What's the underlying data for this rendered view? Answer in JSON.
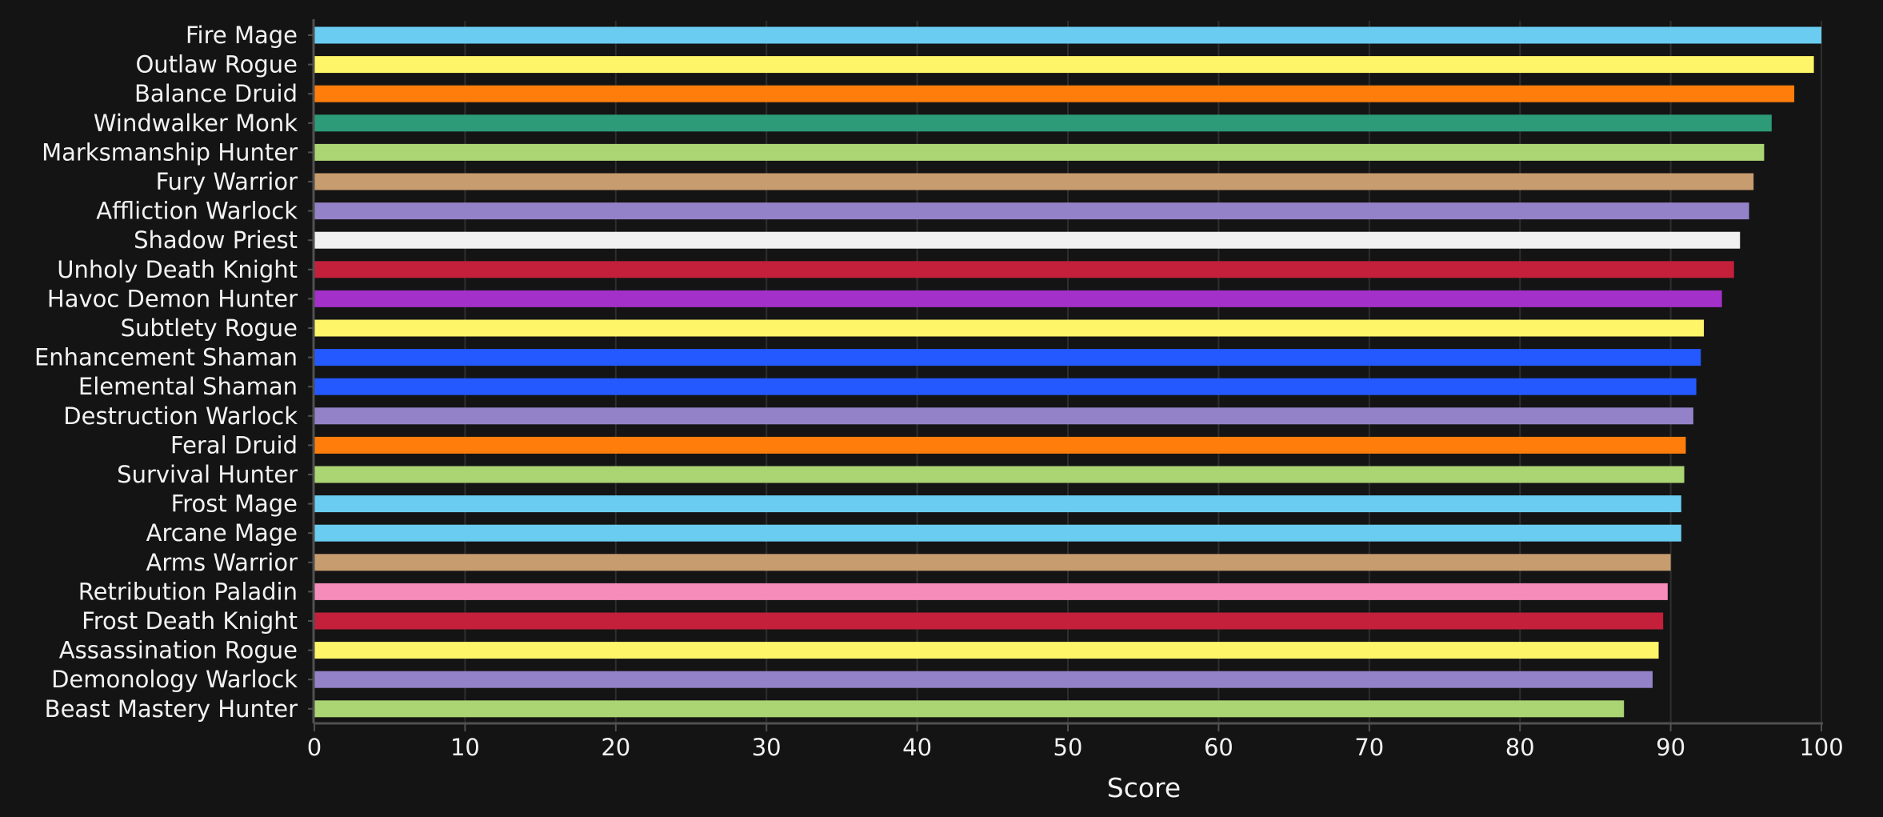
{
  "chart_data": {
    "type": "bar",
    "orientation": "horizontal",
    "title": "",
    "xlabel": "Score",
    "ylabel": "",
    "xlim": [
      0,
      100
    ],
    "xticks": [
      0,
      10,
      20,
      30,
      40,
      50,
      60,
      70,
      80,
      90,
      100
    ],
    "grid": true,
    "legend": "none",
    "background": "#141414",
    "categories": [
      "Fire Mage",
      "Outlaw Rogue",
      "Balance Druid",
      "Windwalker Monk",
      "Marksmanship Hunter",
      "Fury Warrior",
      "Affliction Warlock",
      "Shadow Priest",
      "Unholy Death Knight",
      "Havoc Demon Hunter",
      "Subtlety Rogue",
      "Enhancement Shaman",
      "Elemental Shaman",
      "Destruction Warlock",
      "Feral Druid",
      "Survival Hunter",
      "Frost Mage",
      "Arcane Mage",
      "Arms Warrior",
      "Retribution Paladin",
      "Frost Death Knight",
      "Assassination Rogue",
      "Demonology Warlock",
      "Beast Mastery Hunter"
    ],
    "values": [
      100,
      99.5,
      98.2,
      96.7,
      96.2,
      95.5,
      95.2,
      94.6,
      94.2,
      93.4,
      92.2,
      92.0,
      91.7,
      91.5,
      91.0,
      90.9,
      90.7,
      90.7,
      90.0,
      89.8,
      89.5,
      89.2,
      88.8,
      86.9
    ],
    "colors": [
      "#69ccf0",
      "#fff569",
      "#ff7d0a",
      "#2d9b78",
      "#abd473",
      "#c79c6e",
      "#9482c9",
      "#f0f0f0",
      "#c41f3b",
      "#a330c9",
      "#fff569",
      "#2459ff",
      "#2459ff",
      "#9482c9",
      "#ff7d0a",
      "#abd473",
      "#69ccf0",
      "#69ccf0",
      "#c79c6e",
      "#f58cba",
      "#c41f3b",
      "#fff569",
      "#9482c9",
      "#abd473"
    ],
    "grid_color": "#2e2e2e",
    "axis_color": "#505050",
    "text_color": "#f2f2f2"
  }
}
